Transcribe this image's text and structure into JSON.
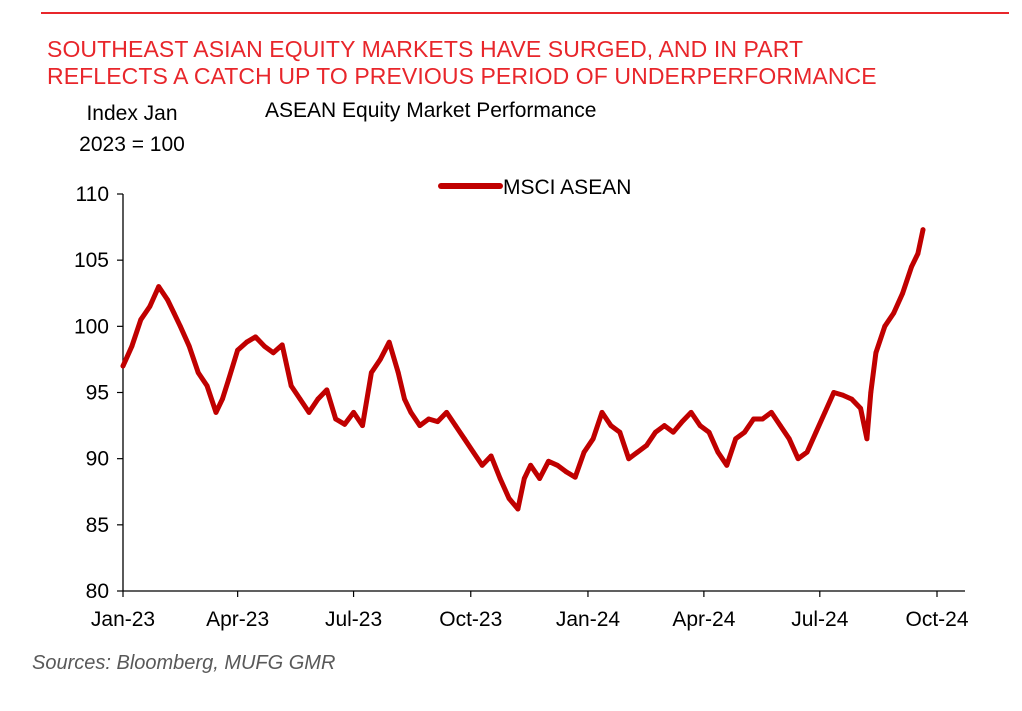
{
  "header": {
    "headline_line1": "SOUTHEAST ASIAN EQUITY MARKETS HAVE SURGED, AND IN PART",
    "headline_line2": "REFLECTS A CATCH UP TO PREVIOUS PERIOD OF UNDERPERFORMANCE"
  },
  "footer": {
    "source": "Sources:  Bloomberg, MUFG GMR"
  },
  "colors": {
    "accent": "#e8262b",
    "series": "#c00000"
  },
  "chart_data": {
    "type": "line",
    "title": "ASEAN Equity Market Performance",
    "ylabel_line1": "Index Jan",
    "ylabel_line2": "2023 = 100",
    "xlabel": "",
    "ylim": [
      80,
      110
    ],
    "yticks": [
      80,
      85,
      90,
      95,
      100,
      105,
      110
    ],
    "xlim": [
      "2023-01-01",
      "2024-10-01"
    ],
    "xticks": [
      {
        "date": "2023-01-01",
        "label": "Jan-23"
      },
      {
        "date": "2023-04-01",
        "label": "Apr-23"
      },
      {
        "date": "2023-07-01",
        "label": "Jul-23"
      },
      {
        "date": "2023-10-01",
        "label": "Oct-23"
      },
      {
        "date": "2024-01-01",
        "label": "Jan-24"
      },
      {
        "date": "2024-04-01",
        "label": "Apr-24"
      },
      {
        "date": "2024-07-01",
        "label": "Jul-24"
      },
      {
        "date": "2024-10-01",
        "label": "Oct-24"
      }
    ],
    "grid": false,
    "legend_position": "top-center",
    "series": [
      {
        "name": "MSCI ASEAN",
        "x": [
          "2023-01-01",
          "2023-01-08",
          "2023-01-15",
          "2023-01-22",
          "2023-01-29",
          "2023-02-05",
          "2023-02-10",
          "2023-02-15",
          "2023-02-22",
          "2023-03-01",
          "2023-03-08",
          "2023-03-15",
          "2023-03-20",
          "2023-03-25",
          "2023-04-01",
          "2023-04-08",
          "2023-04-15",
          "2023-04-22",
          "2023-04-29",
          "2023-05-06",
          "2023-05-13",
          "2023-05-20",
          "2023-05-27",
          "2023-06-03",
          "2023-06-10",
          "2023-06-17",
          "2023-06-24",
          "2023-07-01",
          "2023-07-08",
          "2023-07-15",
          "2023-07-22",
          "2023-07-29",
          "2023-08-05",
          "2023-08-10",
          "2023-08-15",
          "2023-08-22",
          "2023-08-29",
          "2023-09-05",
          "2023-09-12",
          "2023-09-19",
          "2023-09-26",
          "2023-10-03",
          "2023-10-10",
          "2023-10-17",
          "2023-10-24",
          "2023-10-31",
          "2023-11-07",
          "2023-11-12",
          "2023-11-17",
          "2023-11-24",
          "2023-12-01",
          "2023-12-08",
          "2023-12-15",
          "2023-12-22",
          "2023-12-29",
          "2024-01-05",
          "2024-01-12",
          "2024-01-19",
          "2024-01-26",
          "2024-02-02",
          "2024-02-09",
          "2024-02-16",
          "2024-02-23",
          "2024-03-01",
          "2024-03-08",
          "2024-03-15",
          "2024-03-22",
          "2024-03-29",
          "2024-04-05",
          "2024-04-12",
          "2024-04-19",
          "2024-04-26",
          "2024-05-03",
          "2024-05-10",
          "2024-05-17",
          "2024-05-24",
          "2024-05-31",
          "2024-06-07",
          "2024-06-14",
          "2024-06-21",
          "2024-06-28",
          "2024-07-05",
          "2024-07-12",
          "2024-07-19",
          "2024-07-26",
          "2024-08-02",
          "2024-08-07",
          "2024-08-10",
          "2024-08-14",
          "2024-08-21",
          "2024-08-28",
          "2024-09-04",
          "2024-09-11",
          "2024-09-16",
          "2024-09-20"
        ],
        "values": [
          97.0,
          98.5,
          100.5,
          101.5,
          103.0,
          102.0,
          101.0,
          100.0,
          98.5,
          96.5,
          95.5,
          93.5,
          94.5,
          96.0,
          98.2,
          98.8,
          99.2,
          98.5,
          98.0,
          98.6,
          95.5,
          94.5,
          93.5,
          94.5,
          95.2,
          93.0,
          92.6,
          93.5,
          92.5,
          96.5,
          97.5,
          98.8,
          96.5,
          94.5,
          93.5,
          92.5,
          93.0,
          92.8,
          93.5,
          92.5,
          91.5,
          90.5,
          89.5,
          90.2,
          88.5,
          87.0,
          86.2,
          88.5,
          89.5,
          88.5,
          89.8,
          89.5,
          89.0,
          88.6,
          90.5,
          91.5,
          93.5,
          92.5,
          92.0,
          90.0,
          90.5,
          91.0,
          92.0,
          92.5,
          92.0,
          92.8,
          93.5,
          92.5,
          92.0,
          90.5,
          89.5,
          91.5,
          92.0,
          93.0,
          93.0,
          93.5,
          92.5,
          91.5,
          90.0,
          90.5,
          92.0,
          93.5,
          95.0,
          94.8,
          94.5,
          93.8,
          91.5,
          95.0,
          98.0,
          100.0,
          101.0,
          102.5,
          104.5,
          105.5,
          107.3
        ]
      }
    ]
  }
}
